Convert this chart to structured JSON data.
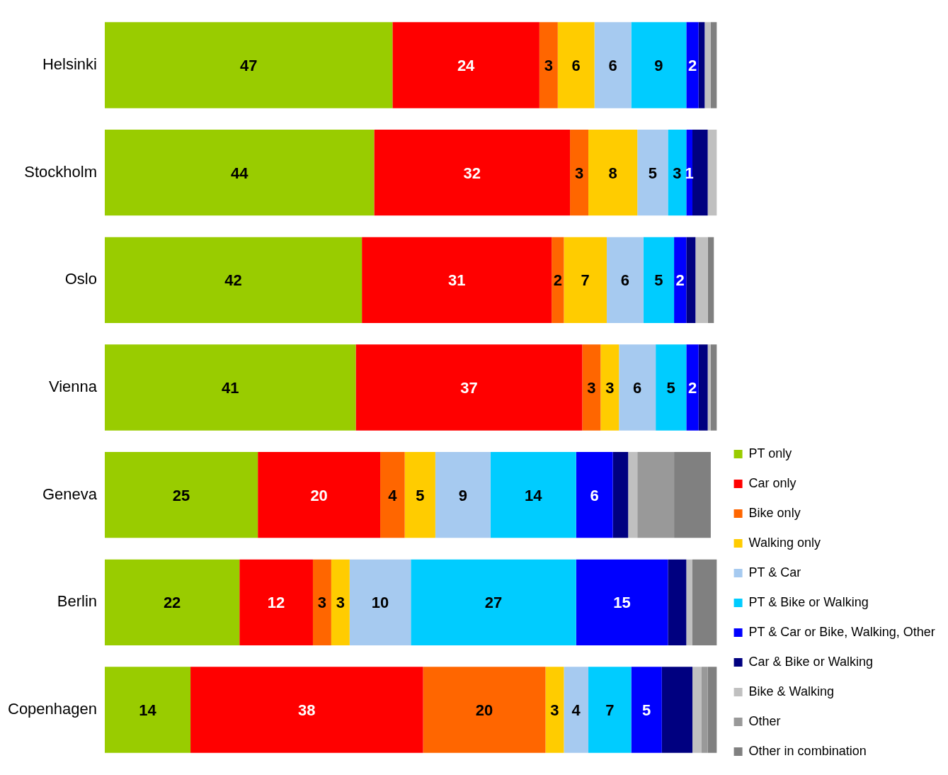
{
  "chart_data": {
    "type": "bar",
    "orientation": "horizontal",
    "stacked": true,
    "legend": "bottom right",
    "xlim": [
      0,
      100
    ],
    "tick_labels": "y",
    "categories": [
      "Helsinki",
      "Stockholm",
      "Oslo",
      "Vienna",
      "Geneva",
      "Berlin",
      "Copenhagen"
    ],
    "series": [
      {
        "name": "PT only",
        "color": "#99cc00",
        "values": [
          47,
          44,
          42,
          41,
          25,
          22,
          14
        ],
        "value_labels": [
          "47",
          "44",
          "42",
          "41",
          "25",
          "22",
          "14"
        ]
      },
      {
        "name": "Car only",
        "color": "#ff0000",
        "values": [
          24,
          32,
          31,
          37,
          20,
          12,
          38
        ],
        "value_labels": [
          "24",
          "32",
          "31",
          "37",
          "20",
          "12",
          "38"
        ]
      },
      {
        "name": "Bike only",
        "color": "#ff6600",
        "values": [
          3,
          3,
          2,
          3,
          4,
          3,
          20
        ],
        "value_labels": [
          "3",
          "3",
          "2",
          "3",
          "4",
          "3",
          "20"
        ]
      },
      {
        "name": "Walking only",
        "color": "#ffcc00",
        "values": [
          6,
          8,
          7,
          3,
          5,
          3,
          3
        ],
        "value_labels": [
          "6",
          "8",
          "7",
          "3",
          "5",
          "3",
          "3"
        ]
      },
      {
        "name": "PT & Car",
        "color": "#a6caf0",
        "values": [
          6,
          5,
          6,
          6,
          9,
          10,
          4
        ],
        "value_labels": [
          "6",
          "5",
          "6",
          "6",
          "9",
          "10",
          "4"
        ]
      },
      {
        "name": "PT & Bike or Walking",
        "color": "#00ccff",
        "values": [
          9,
          3,
          5,
          5,
          14,
          27,
          7
        ],
        "value_labels": [
          "9",
          "3",
          "5",
          "5",
          "14",
          "27",
          "7"
        ]
      },
      {
        "name": "PT & Car or Bike, Walking, Other",
        "color": "#0000ff",
        "values": [
          2,
          1,
          2,
          2,
          6,
          15,
          5
        ],
        "value_labels": [
          "2",
          "1",
          "2",
          "2",
          "6",
          "15",
          "5"
        ]
      },
      {
        "name": "Car & Bike or Walking",
        "color": "#000080",
        "values": [
          1,
          2.5,
          1.5,
          1.5,
          2.5,
          3,
          5
        ],
        "value_labels": [
          null,
          null,
          null,
          null,
          null,
          null,
          null
        ]
      },
      {
        "name": "Bike & Walking",
        "color": "#c0c0c0",
        "values": [
          1,
          1.5,
          2,
          0.5,
          1.5,
          1,
          1.5
        ],
        "value_labels": [
          null,
          null,
          null,
          null,
          null,
          null,
          null
        ]
      },
      {
        "name": "Other",
        "color": "#999999",
        "values": [
          0,
          0,
          0,
          0,
          6,
          0,
          1
        ],
        "value_labels": [
          null,
          null,
          null,
          null,
          null,
          null,
          null
        ]
      },
      {
        "name": "Other in combination",
        "color": "#808080",
        "values": [
          1,
          0,
          1,
          1,
          6,
          4,
          1.5
        ],
        "value_labels": [
          null,
          null,
          null,
          null,
          null,
          null,
          null
        ]
      }
    ]
  }
}
